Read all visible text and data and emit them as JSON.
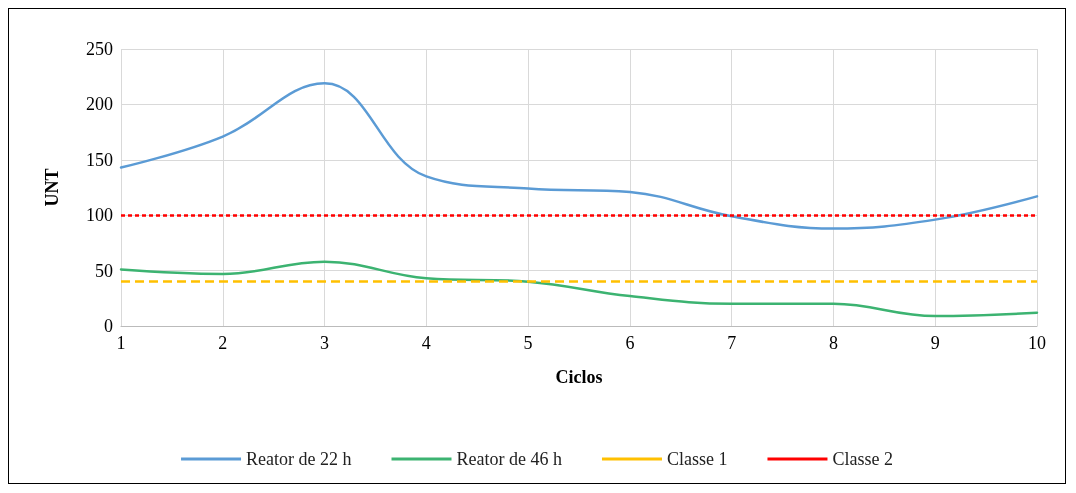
{
  "chart_data": {
    "type": "line",
    "xlabel": "Ciclos",
    "ylabel": "UNT",
    "x": [
      1,
      2,
      3,
      4,
      5,
      6,
      7,
      8,
      9,
      10
    ],
    "xlim": [
      1,
      10
    ],
    "xticks": [
      1,
      2,
      3,
      4,
      5,
      6,
      7,
      8,
      9,
      10
    ],
    "ylim": [
      0,
      250
    ],
    "yticks": [
      0,
      50,
      100,
      150,
      200,
      250
    ],
    "series": [
      {
        "name": "Reator de 22 h",
        "color": "#5b9bd5",
        "values": [
          143,
          171,
          219,
          135,
          124,
          121,
          99,
          88,
          96,
          117
        ]
      },
      {
        "name": "Reator de 46 h",
        "color": "#3cb371",
        "values": [
          51,
          47,
          58,
          43,
          40,
          27,
          20,
          20,
          9,
          12
        ]
      }
    ],
    "ref_lines": [
      {
        "axis": "y",
        "value": 40,
        "label": "Classe 1",
        "color": "#ffc000",
        "line_style": "dashed"
      },
      {
        "axis": "y",
        "value": 100,
        "label": "Classe 2",
        "color": "#ff0000",
        "line_style": "dotted"
      }
    ],
    "grid": true,
    "legend": "bottom",
    "marker": "none",
    "line_style": "solid"
  }
}
